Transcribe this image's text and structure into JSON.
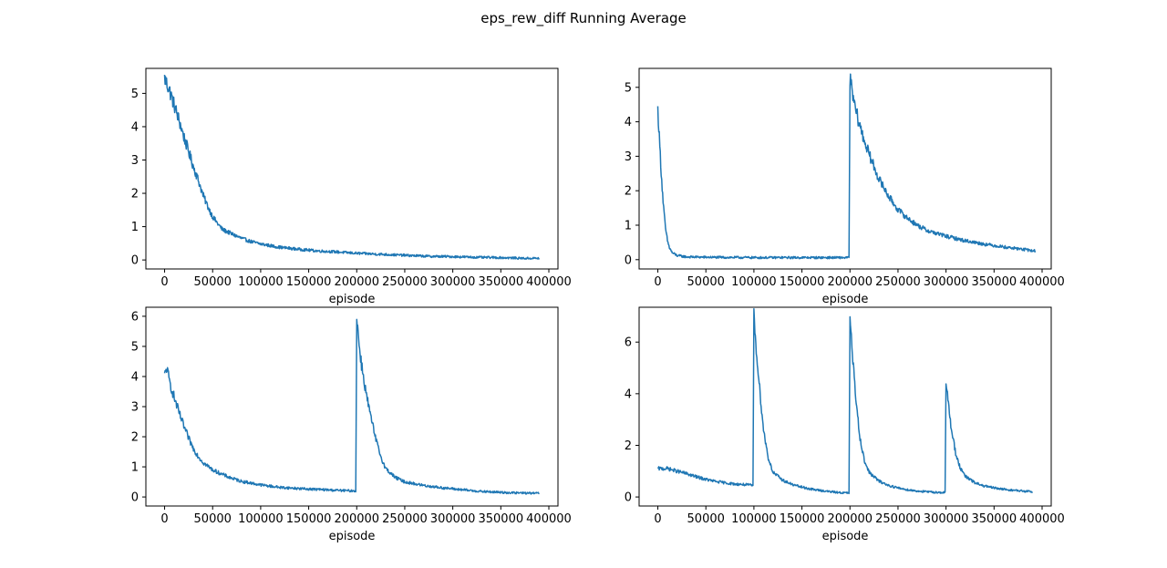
{
  "figure": {
    "title": "eps_rew_diff Running Average",
    "line_color": "#1f77b4"
  },
  "chart_data": [
    {
      "type": "line",
      "title": "",
      "xlabel": "episode",
      "ylabel": "",
      "xlim": [
        -19500,
        409500
      ],
      "ylim": [
        -0.27,
        5.75
      ],
      "xticks": [
        0,
        50000,
        100000,
        150000,
        200000,
        250000,
        300000,
        350000,
        400000
      ],
      "yticks": [
        0,
        1,
        2,
        3,
        4,
        5
      ],
      "grid": false,
      "series": [
        {
          "x": [
            0,
            5000,
            10000,
            15000,
            20000,
            25000,
            30000,
            35000,
            40000,
            45000,
            50000,
            55000,
            60000,
            70000,
            80000,
            90000,
            100000,
            120000,
            140000,
            160000,
            180000,
            200000,
            225000,
            250000,
            275000,
            300000,
            325000,
            350000,
            375000,
            390000
          ],
          "y": [
            5.45,
            5.1,
            4.65,
            4.2,
            3.7,
            3.25,
            2.8,
            2.4,
            1.95,
            1.6,
            1.3,
            1.1,
            0.92,
            0.78,
            0.65,
            0.55,
            0.48,
            0.38,
            0.32,
            0.27,
            0.24,
            0.2,
            0.17,
            0.14,
            0.11,
            0.1,
            0.08,
            0.07,
            0.05,
            0.05
          ]
        }
      ]
    },
    {
      "type": "line",
      "title": "",
      "xlabel": "episode",
      "ylabel": "",
      "xlim": [
        -19500,
        409500
      ],
      "ylim": [
        -0.27,
        5.55
      ],
      "xticks": [
        0,
        50000,
        100000,
        150000,
        200000,
        250000,
        300000,
        350000,
        400000
      ],
      "yticks": [
        0,
        1,
        2,
        3,
        4,
        5
      ],
      "grid": false,
      "series": [
        {
          "x": [
            0,
            2000,
            4000,
            6000,
            8000,
            10000,
            12000,
            15000,
            20000,
            30000,
            50000,
            100000,
            150000,
            199000,
            200000,
            202000,
            205000,
            210000,
            215000,
            220000,
            225000,
            230000,
            240000,
            250000,
            260000,
            270000,
            280000,
            300000,
            320000,
            340000,
            360000,
            380000,
            393000
          ],
          "y": [
            4.35,
            3.3,
            2.3,
            1.5,
            0.9,
            0.55,
            0.35,
            0.2,
            0.12,
            0.08,
            0.07,
            0.06,
            0.06,
            0.06,
            5.3,
            4.9,
            4.45,
            3.9,
            3.45,
            3.05,
            2.7,
            2.35,
            1.85,
            1.45,
            1.2,
            1.0,
            0.85,
            0.68,
            0.55,
            0.45,
            0.37,
            0.3,
            0.25
          ]
        }
      ]
    },
    {
      "type": "line",
      "title": "",
      "xlabel": "episode",
      "ylabel": "",
      "xlim": [
        -19500,
        409500
      ],
      "ylim": [
        -0.3,
        6.3
      ],
      "xticks": [
        0,
        50000,
        100000,
        150000,
        200000,
        250000,
        300000,
        350000,
        400000
      ],
      "yticks": [
        0,
        1,
        2,
        3,
        4,
        5,
        6
      ],
      "grid": false,
      "series": [
        {
          "x": [
            0,
            2000,
            5000,
            10000,
            15000,
            20000,
            25000,
            30000,
            35000,
            40000,
            50000,
            60000,
            70000,
            80000,
            100000,
            120000,
            140000,
            160000,
            180000,
            199000,
            200000,
            202000,
            205000,
            210000,
            215000,
            220000,
            225000,
            230000,
            240000,
            250000,
            270000,
            290000,
            310000,
            330000,
            360000,
            390000
          ],
          "y": [
            4.0,
            4.3,
            3.85,
            3.3,
            2.8,
            2.35,
            1.95,
            1.6,
            1.35,
            1.15,
            0.9,
            0.75,
            0.62,
            0.52,
            0.4,
            0.32,
            0.28,
            0.25,
            0.22,
            0.2,
            6.0,
            5.2,
            4.4,
            3.4,
            2.6,
            1.9,
            1.35,
            0.95,
            0.65,
            0.5,
            0.38,
            0.3,
            0.24,
            0.18,
            0.14,
            0.12
          ]
        }
      ]
    },
    {
      "type": "line",
      "title": "",
      "xlabel": "episode",
      "ylabel": "",
      "xlim": [
        -19500,
        409500
      ],
      "ylim": [
        -0.35,
        7.35
      ],
      "xticks": [
        0,
        50000,
        100000,
        150000,
        200000,
        250000,
        300000,
        350000,
        400000
      ],
      "yticks": [
        0,
        2,
        4,
        6
      ],
      "grid": false,
      "series": [
        {
          "x": [
            0,
            10000,
            20000,
            30000,
            40000,
            50000,
            60000,
            70000,
            80000,
            90000,
            99000,
            100000,
            102000,
            105000,
            110000,
            115000,
            120000,
            130000,
            140000,
            150000,
            160000,
            170000,
            180000,
            190000,
            199000,
            200000,
            202000,
            205000,
            210000,
            215000,
            220000,
            230000,
            240000,
            250000,
            260000,
            270000,
            280000,
            290000,
            299000,
            300000,
            302000,
            305000,
            310000,
            315000,
            320000,
            330000,
            340000,
            350000,
            360000,
            370000,
            380000,
            390000
          ],
          "y": [
            1.1,
            1.1,
            1.0,
            0.9,
            0.78,
            0.68,
            0.6,
            0.55,
            0.5,
            0.48,
            0.45,
            7.0,
            6.0,
            4.6,
            2.6,
            1.5,
            0.95,
            0.65,
            0.48,
            0.38,
            0.3,
            0.25,
            0.2,
            0.17,
            0.15,
            6.85,
            5.8,
            4.3,
            2.4,
            1.4,
            0.95,
            0.62,
            0.45,
            0.35,
            0.28,
            0.23,
            0.2,
            0.18,
            0.17,
            4.35,
            3.8,
            2.8,
            1.7,
            1.1,
            0.8,
            0.55,
            0.42,
            0.35,
            0.3,
            0.26,
            0.23,
            0.2
          ]
        }
      ]
    }
  ]
}
